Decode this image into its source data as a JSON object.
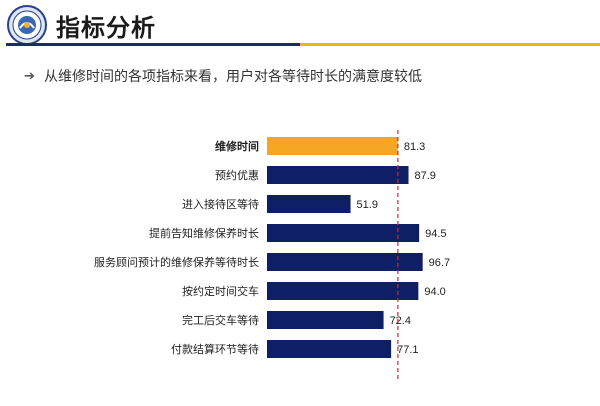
{
  "header": {
    "title": "指标分析",
    "logo_icon": "university-seal-icon"
  },
  "subtitle": {
    "bullet_icon": "arrow-right-icon",
    "text": "从维修时间的各项指标来看，用户对各等待时长的满意度较低"
  },
  "colors": {
    "bar": "#0f1f66",
    "highlight": "#f5a623",
    "reference_line": "#d9262b",
    "rule_blue": "#1b2a6b",
    "rule_gold": "#f0b323"
  },
  "chart_data": {
    "type": "bar",
    "orientation": "horizontal",
    "categories": [
      "维修时间",
      "预约优惠",
      "进入接待区等待",
      "提前告知维修保养时长",
      "服务顾问预计的维修保养等待时长",
      "按约定时间交车",
      "完工后交车等待",
      "付款结算环节等待"
    ],
    "values": [
      81.3,
      87.9,
      51.9,
      94.5,
      96.7,
      94.0,
      72.4,
      77.1
    ],
    "value_labels": [
      "81.3",
      "87.9",
      "51.9",
      "94.5",
      "96.7",
      "94.0",
      "72.4",
      "77.1"
    ],
    "highlight_index": 0,
    "reference_line": 81.3,
    "xlim": [
      0,
      100
    ],
    "grid": false,
    "legend": "none",
    "title": "",
    "xlabel": "",
    "ylabel": ""
  }
}
